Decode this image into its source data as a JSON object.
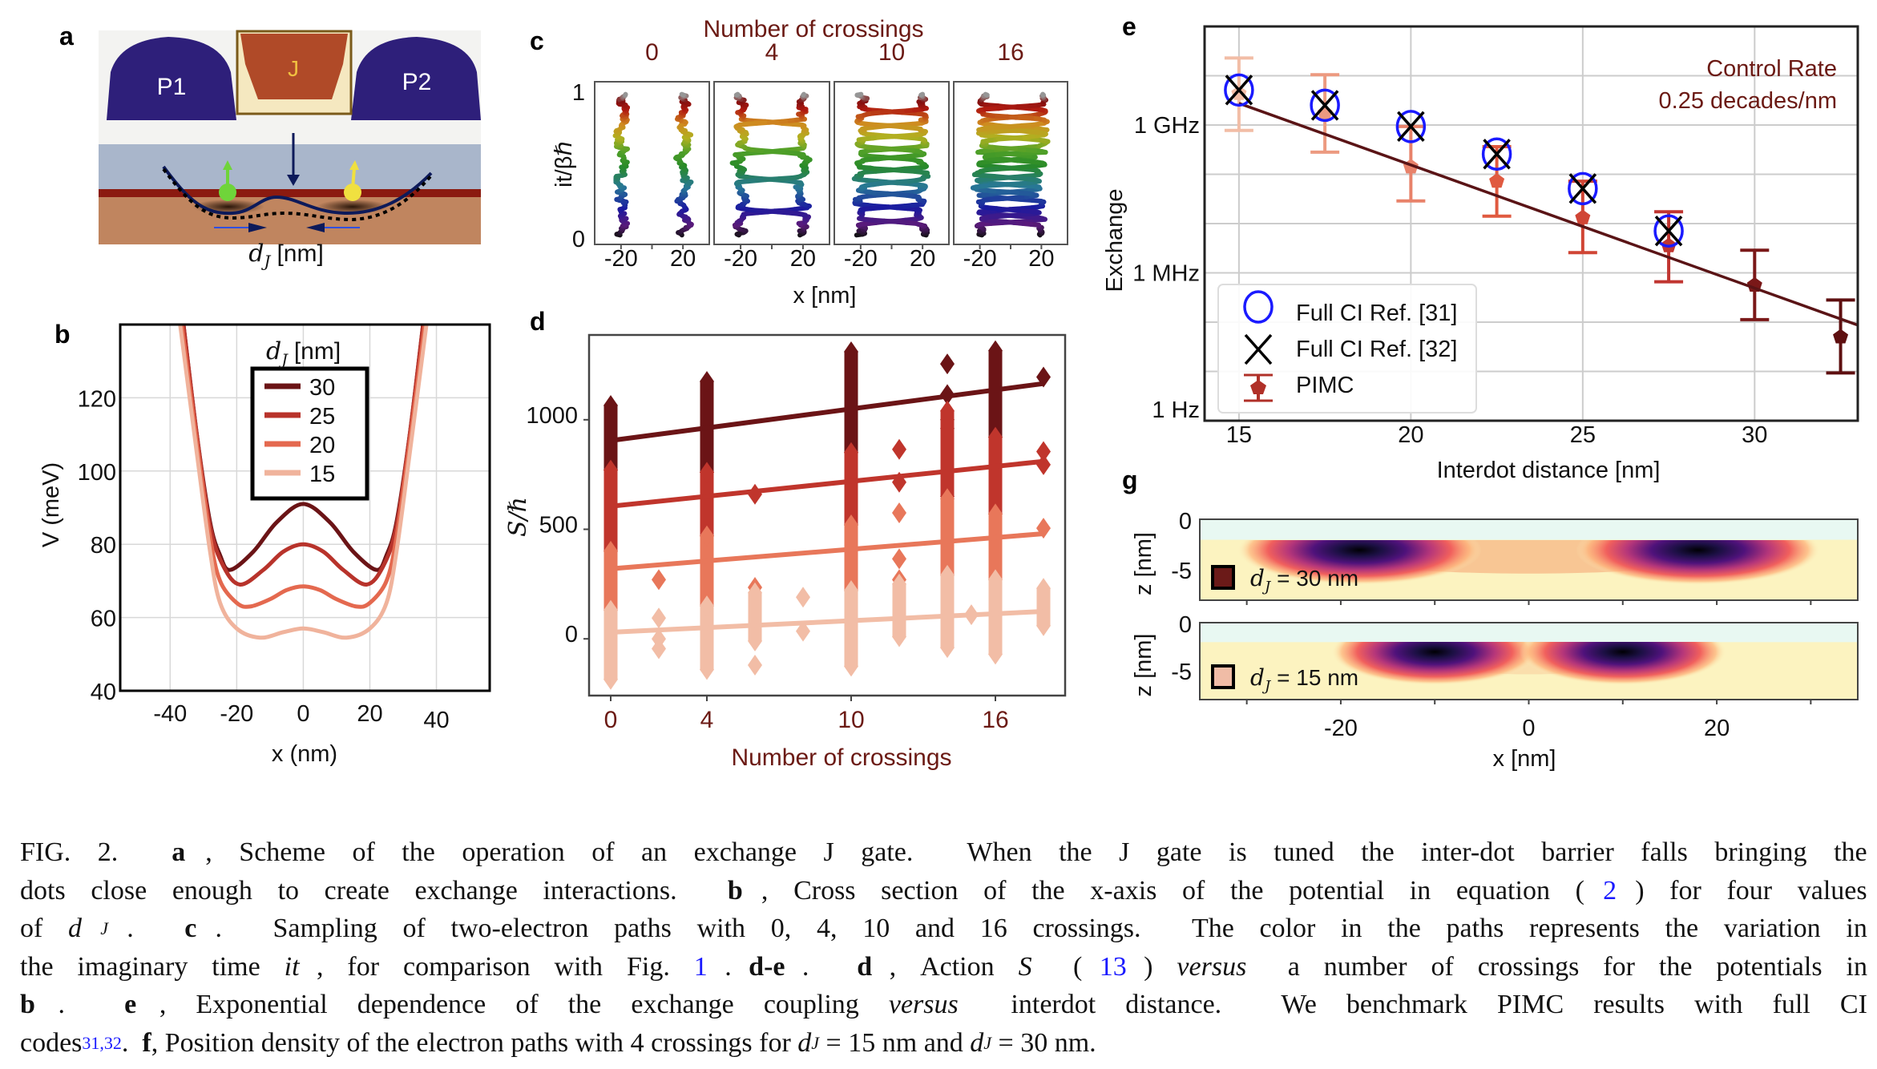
{
  "panel_a": {
    "label": "a",
    "gate_p1": "P1",
    "gate_j": "J",
    "gate_p2": "P2",
    "dimension_symbol": "d",
    "dimension_sub": "J",
    "dimension_unit": "[nm]",
    "colors": {
      "plunger": "#2e1f7a",
      "j_gate": "#b04a28",
      "j_box": "#f5e8c0",
      "oxide": "#a9b6cb",
      "interface": "#8b1a10",
      "substrate": "#c0855f",
      "spin_left": "#6fd43a",
      "spin_right": "#f0e040"
    }
  },
  "chart_data": [
    {
      "panel": "b",
      "type": "line",
      "xlabel": "x (nm)",
      "ylabel": "V (meV)",
      "xlim": [
        -55,
        56
      ],
      "ylim": [
        40,
        140
      ],
      "xticks": [
        "-40",
        "-20",
        "0",
        "20",
        "40"
      ],
      "xtick_values": [
        -40,
        -20,
        0,
        20,
        40
      ],
      "yticks": [
        "40",
        "60",
        "80",
        "100",
        "120"
      ],
      "ytick_values": [
        40,
        60,
        80,
        100,
        120
      ],
      "grid": true,
      "legend": {
        "placement": "top-center",
        "title_symbol": "d",
        "title_sub": "J",
        "title_unit": "[nm]"
      },
      "series": [
        {
          "name": "30",
          "color": "#6b1416",
          "points": [
            [
              -36,
              140
            ],
            [
              -32,
              110
            ],
            [
              -28,
              86
            ],
            [
              -25,
              77
            ],
            [
              -22,
              73
            ],
            [
              -15,
              78
            ],
            [
              -8,
              86
            ],
            [
              0,
              91
            ],
            [
              8,
              86
            ],
            [
              15,
              78
            ],
            [
              22,
              73
            ],
            [
              25,
              77
            ],
            [
              28,
              86
            ],
            [
              32,
              110
            ],
            [
              36,
              140
            ]
          ]
        },
        {
          "name": "25",
          "color": "#b8332b",
          "points": [
            [
              -36,
              140
            ],
            [
              -32,
              110
            ],
            [
              -28,
              85
            ],
            [
              -24,
              74
            ],
            [
              -19,
              69
            ],
            [
              -12,
              73
            ],
            [
              -6,
              78
            ],
            [
              0,
              80
            ],
            [
              6,
              78
            ],
            [
              12,
              73
            ],
            [
              19,
              69
            ],
            [
              24,
              74
            ],
            [
              28,
              85
            ],
            [
              32,
              110
            ],
            [
              36,
              140
            ]
          ]
        },
        {
          "name": "20",
          "color": "#e4694f",
          "points": [
            [
              -36.5,
              140
            ],
            [
              -32,
              108
            ],
            [
              -28,
              82
            ],
            [
              -25,
              70
            ],
            [
              -20,
              64
            ],
            [
              -16,
              63
            ],
            [
              -10,
              65
            ],
            [
              -5,
              67.5
            ],
            [
              0,
              68.5
            ],
            [
              5,
              67.5
            ],
            [
              10,
              65
            ],
            [
              16,
              63
            ],
            [
              20,
              64
            ],
            [
              25,
              70
            ],
            [
              28,
              82
            ],
            [
              32,
              108
            ],
            [
              36.5,
              140
            ]
          ]
        },
        {
          "name": "15",
          "color": "#f0b39c",
          "points": [
            [
              -37,
              140
            ],
            [
              -32,
              105
            ],
            [
              -28,
              78
            ],
            [
              -25,
              64
            ],
            [
              -20,
              57
            ],
            [
              -13,
              54.5
            ],
            [
              -6,
              56
            ],
            [
              0,
              57
            ],
            [
              6,
              56
            ],
            [
              13,
              54.5
            ],
            [
              20,
              57
            ],
            [
              25,
              64
            ],
            [
              28,
              78
            ],
            [
              32,
              105
            ],
            [
              37,
              140
            ]
          ]
        }
      ]
    },
    {
      "panel": "c",
      "type": "line",
      "title": "Number of crossings",
      "subplot_titles": [
        "0",
        "4",
        "10",
        "16"
      ],
      "crossings": [
        0,
        4,
        10,
        16
      ],
      "xlabel": "x [nm]",
      "ylabel": "it/βℏ",
      "xlim": [
        -37,
        37
      ],
      "ylim": [
        0,
        1
      ],
      "xticks": [
        "-20",
        "20"
      ],
      "xtick_values": [
        -20,
        20
      ],
      "yticks": [
        "0",
        "1"
      ],
      "ytick_values": [
        0,
        1
      ],
      "colormap": "rainbow (black → purple → blue → green → yellow → red → gray)"
    },
    {
      "panel": "d",
      "type": "scatter",
      "xlabel": "Number of crossings",
      "ylabel": "S/ℏ",
      "xlim": [
        -0.9,
        18.9
      ],
      "ylim": [
        -259,
        1387
      ],
      "xticks": [
        "0",
        "4",
        "10",
        "16"
      ],
      "xtick_values": [
        0,
        4,
        10,
        16
      ],
      "yticks": [
        "0",
        "500",
        "1000"
      ],
      "ytick_values": [
        0,
        500,
        1000
      ],
      "grid": false,
      "series": [
        {
          "name": "30",
          "color": "#6b1416",
          "fit": [
            [
              0,
              905
            ],
            [
              18,
              1165
            ]
          ],
          "ranges": [
            [
              0,
              770,
              1065
            ],
            [
              4,
              760,
              1175
            ],
            [
              10,
              850,
              1310
            ],
            [
              16,
              920,
              1315
            ]
          ],
          "points": [
            [
              14,
              1255
            ],
            [
              14,
              1115
            ],
            [
              14,
              1000
            ],
            [
              14,
              960
            ],
            [
              18,
              1195
            ]
          ]
        },
        {
          "name": "25",
          "color": "#c0352c",
          "fit": [
            [
              0,
              605
            ],
            [
              18,
              810
            ]
          ],
          "ranges": [
            [
              0,
              400,
              770
            ],
            [
              4,
              470,
              760
            ],
            [
              10,
              520,
              850
            ],
            [
              16,
              570,
              920
            ],
            [
              14,
              650,
              1040
            ]
          ],
          "points": [
            [
              6,
              660
            ],
            [
              12,
              865
            ],
            [
              12,
              715
            ],
            [
              18,
              855
            ],
            [
              18,
              795
            ]
          ]
        },
        {
          "name": "20",
          "color": "#e8775a",
          "fit": [
            [
              0,
              320
            ],
            [
              18,
              480
            ]
          ],
          "ranges": [
            [
              0,
              130,
              400
            ],
            [
              4,
              150,
              470
            ],
            [
              10,
              220,
              520
            ],
            [
              16,
              270,
              570
            ],
            [
              14,
              290,
              640
            ]
          ],
          "points": [
            [
              2,
              270
            ],
            [
              6,
              235
            ],
            [
              12,
              575
            ],
            [
              12,
              365
            ],
            [
              12,
              270
            ],
            [
              18,
              505
            ]
          ]
        },
        {
          "name": "15",
          "color": "#f2bda6",
          "fit": [
            [
              0,
              30
            ],
            [
              18,
              125
            ]
          ],
          "ranges": [
            [
              0,
              -185,
              130
            ],
            [
              4,
              -140,
              150
            ],
            [
              10,
              -125,
              220
            ],
            [
              16,
              -70,
              270
            ],
            [
              14,
              -40,
              290
            ],
            [
              6,
              -10,
              210
            ],
            [
              12,
              10,
              250
            ],
            [
              18,
              60,
              230
            ]
          ],
          "points": [
            [
              2,
              95
            ],
            [
              2,
              0
            ],
            [
              2,
              -45
            ],
            [
              6,
              -120
            ],
            [
              8,
              190
            ],
            [
              8,
              35
            ],
            [
              15,
              110
            ]
          ]
        }
      ]
    },
    {
      "panel": "e",
      "type": "scatter",
      "xlabel": "Interdot distance [nm]",
      "ylabel": "Exchange",
      "yscale": "log",
      "xlim": [
        14,
        33
      ],
      "ylim_log10": [
        3,
        11
      ],
      "xticks": [
        "15",
        "20",
        "25",
        "30"
      ],
      "xtick_values": [
        15,
        20,
        25,
        30
      ],
      "yticks": [
        "1 Hz",
        "1 MHz",
        "1 GHz"
      ],
      "ytick_values_log10": [
        3,
        6,
        9
      ],
      "grid": true,
      "annotation": [
        "Control Rate",
        "0.25 decades/nm"
      ],
      "legend": {
        "placement": "bottom-left",
        "entries": [
          "Full CI Ref. [31]",
          "Full CI Ref. [32]",
          "PIMC"
        ]
      },
      "series": [
        {
          "name": "Full CI Ref. [31]",
          "marker": "circle",
          "color": "#1a1aff",
          "x": [
            15,
            17.5,
            20,
            22.5,
            25,
            27.5
          ],
          "y_log10": [
            9.71,
            9.4,
            8.97,
            8.41,
            7.71,
            6.85
          ]
        },
        {
          "name": "Full CI Ref. [32]",
          "marker": "x",
          "color": "#000000",
          "x": [
            15,
            17.5,
            20,
            22.5,
            25,
            27.5
          ],
          "y_log10": [
            9.71,
            9.4,
            8.97,
            8.41,
            7.71,
            6.85
          ]
        },
        {
          "name": "PIMC",
          "marker": "pentagon",
          "x": [
            15,
            17.5,
            20,
            22.5,
            25,
            27.5,
            30,
            32.5
          ],
          "y_log10": [
            9.64,
            9.24,
            8.15,
            7.86,
            7.12,
            6.55,
            5.75,
            4.7
          ],
          "err_low_log10": [
            8.89,
            8.45,
            7.46,
            7.15,
            6.41,
            5.82,
            5.05,
            3.97
          ],
          "err_high_log10": [
            10.36,
            10.02,
            8.97,
            8.56,
            7.86,
            7.24,
            6.46,
            5.45
          ],
          "colors": [
            "#f2bda6",
            "#ec9a80",
            "#e8826a",
            "#e05a40",
            "#d04535",
            "#c03530",
            "#7a1818",
            "#5e0f10"
          ]
        },
        {
          "name": "fit",
          "color": "#5a1416",
          "points": [
            [
              15,
              9.44
            ],
            [
              33,
              4.94
            ]
          ]
        }
      ]
    },
    {
      "panel": "g",
      "type": "heatmap",
      "xlabel": "x [nm]",
      "ylabel": "z [nm]",
      "xlim": [
        -35,
        35
      ],
      "zlim": [
        -7.9,
        0
      ],
      "xticks": [
        "-20",
        "0",
        "20"
      ],
      "xtick_values": [
        -20,
        0,
        20
      ],
      "yticks": [
        "0",
        "-5"
      ],
      "ytick_values": [
        0,
        -5
      ],
      "colormap": "magma_r",
      "subplots": [
        {
          "legend_symbol": "d",
          "legend_sub": "J",
          "legend_text": "= 30 nm",
          "color": "#6b1a18",
          "peaks_x": [
            -18,
            18
          ],
          "peak_z": -3
        },
        {
          "legend_symbol": "d",
          "legend_sub": "J",
          "legend_text": "= 15 nm",
          "color": "#f0bca6",
          "peaks_x": [
            -10,
            10
          ],
          "peak_z": -3
        }
      ]
    }
  ],
  "caption": {
    "lines": [
      [
        {
          "t": "FIG. 2.  ",
          "s": ""
        },
        {
          "t": "a",
          "s": "b"
        },
        {
          "t": ", Scheme of the operation of an exchange J gate.  When the J gate is tuned the inter-dot barrier falls bringing the",
          "s": ""
        }
      ],
      [
        {
          "t": "dots close enough to create exchange interactions.  ",
          "s": ""
        },
        {
          "t": "b",
          "s": "b"
        },
        {
          "t": ", Cross section of the x-axis of the potential in equation (",
          "s": ""
        },
        {
          "t": "2",
          "s": "link"
        },
        {
          "t": ") for four values",
          "s": ""
        }
      ],
      [
        {
          "t": "of ",
          "s": ""
        },
        {
          "t": "d",
          "s": "i"
        },
        {
          "t": "J",
          "s": "sub"
        },
        {
          "t": ".  ",
          "s": ""
        },
        {
          "t": "c",
          "s": "b"
        },
        {
          "t": ".  Sampling of two-electron paths with 0, 4, 10 and 16 crossings.  The color in the paths represents the variation in",
          "s": ""
        }
      ],
      [
        {
          "t": "the imaginary time ",
          "s": ""
        },
        {
          "t": "it",
          "s": "i"
        },
        {
          "t": ", for comparison with Fig. ",
          "s": ""
        },
        {
          "t": "1",
          "s": "link"
        },
        {
          "t": ".",
          "s": ""
        },
        {
          "t": "d-e",
          "s": "b"
        },
        {
          "t": ".  ",
          "s": ""
        },
        {
          "t": "d",
          "s": "b"
        },
        {
          "t": ", Action ",
          "s": ""
        },
        {
          "t": "S",
          "s": "i"
        },
        {
          "t": " (",
          "s": ""
        },
        {
          "t": "13",
          "s": "link"
        },
        {
          "t": ") ",
          "s": ""
        },
        {
          "t": "versus",
          "s": "i"
        },
        {
          "t": " a number of crossings for the potentials in",
          "s": ""
        }
      ],
      [
        {
          "t": "b",
          "s": "b"
        },
        {
          "t": ".  ",
          "s": ""
        },
        {
          "t": "e",
          "s": "b"
        },
        {
          "t": ", Exponential dependence of the exchange coupling ",
          "s": ""
        },
        {
          "t": "versus",
          "s": "i"
        },
        {
          "t": " interdot distance.  We benchmark PIMC results with full CI",
          "s": ""
        }
      ],
      [
        {
          "t": "codes",
          "s": ""
        },
        {
          "t": "31,32",
          "s": "sup"
        },
        {
          "t": ".  ",
          "s": ""
        },
        {
          "t": "f",
          "s": "b"
        },
        {
          "t": ", Position density of the electron paths with 4 crossings for ",
          "s": ""
        },
        {
          "t": "d",
          "s": "i"
        },
        {
          "t": "J",
          "s": "sub"
        },
        {
          "t": " = 15 nm and ",
          "s": ""
        },
        {
          "t": "d",
          "s": "i"
        },
        {
          "t": "J",
          "s": "sub"
        },
        {
          "t": " = 30 nm.",
          "s": ""
        }
      ]
    ]
  }
}
